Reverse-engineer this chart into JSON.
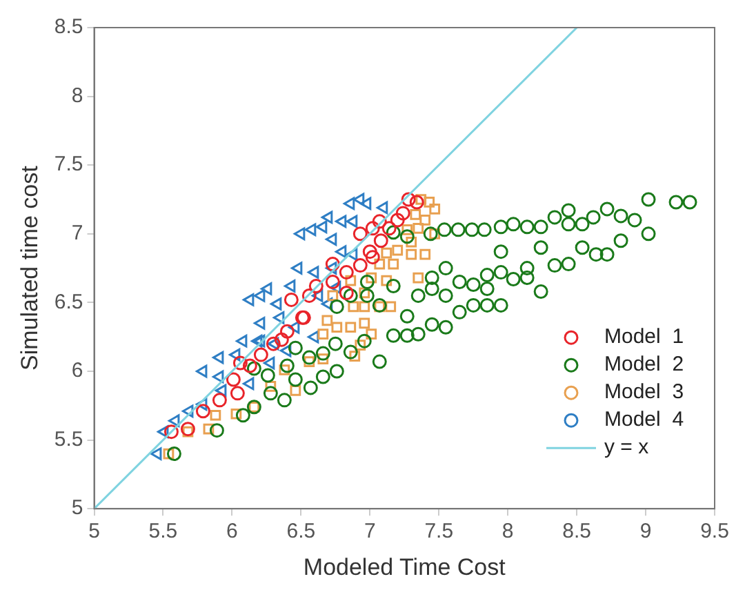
{
  "chart_data": {
    "type": "scatter",
    "xlabel": "Modeled Time Cost",
    "ylabel": "Simulated time cost",
    "xlim": [
      5,
      9.5
    ],
    "xticks": [
      5,
      5.5,
      6,
      6.5,
      7,
      7.5,
      8,
      8.5,
      9,
      9.5
    ],
    "ylim": [
      5,
      8.5
    ],
    "yticks": [
      5,
      5.5,
      6,
      6.5,
      7,
      7.5,
      8,
      8.5
    ],
    "grid": false,
    "legend": "bottom right",
    "series": [
      {
        "name": "Model  1",
        "color": "#e8242a",
        "marker": "circle",
        "x": [
          5.56,
          5.68,
          5.79,
          5.91,
          6.01,
          6.04,
          6.13,
          6.21,
          6.3,
          6.4,
          6.43,
          6.51,
          6.56,
          6.61,
          6.73,
          6.83,
          6.83,
          6.93,
          7.0,
          7.02,
          7.08,
          7.02,
          7.07,
          7.14,
          7.2,
          7.24,
          7.28,
          7.34,
          6.93,
          6.73,
          6.52,
          6.36,
          6.06
        ],
        "values": [
          5.56,
          5.58,
          5.71,
          5.79,
          5.94,
          5.84,
          6.04,
          6.12,
          6.2,
          6.29,
          6.52,
          6.39,
          6.55,
          6.62,
          6.65,
          6.57,
          6.72,
          6.77,
          6.87,
          6.83,
          6.95,
          7.04,
          7.09,
          7.04,
          7.1,
          7.15,
          7.25,
          7.23,
          7.0,
          6.78,
          6.39,
          6.23,
          6.06
        ]
      },
      {
        "name": "Model  2",
        "color": "#1a7a1a",
        "marker": "circle",
        "x": [
          5.58,
          5.89,
          6.08,
          6.16,
          6.28,
          6.38,
          6.16,
          6.4,
          6.46,
          6.57,
          6.66,
          6.76,
          6.66,
          6.75,
          6.86,
          6.96,
          7.07,
          6.98,
          7.07,
          7.17,
          7.17,
          7.27,
          7.35,
          7.27,
          7.35,
          7.45,
          7.55,
          7.45,
          7.55,
          7.45,
          7.55,
          7.65,
          7.65,
          7.75,
          7.85,
          7.95,
          7.75,
          7.85,
          7.95,
          7.85,
          8.04,
          8.14,
          8.14,
          8.24,
          7.95,
          8.24,
          8.34,
          8.44,
          8.54,
          8.64,
          8.72,
          8.82,
          9.02,
          9.22,
          9.32,
          9.02,
          8.92,
          8.82,
          8.72,
          8.62,
          8.54,
          8.44,
          8.44,
          8.34,
          8.24,
          8.14,
          8.04,
          7.95,
          7.83,
          7.74,
          7.64,
          7.54,
          7.44,
          7.27,
          7.17,
          6.98,
          6.86,
          6.76,
          6.56,
          6.46,
          6.26
        ],
        "values": [
          5.4,
          5.57,
          5.68,
          5.74,
          5.84,
          5.79,
          6.02,
          6.04,
          5.94,
          5.88,
          5.96,
          6.0,
          6.13,
          6.2,
          6.14,
          6.22,
          6.07,
          6.55,
          6.48,
          6.62,
          6.26,
          6.26,
          6.27,
          6.4,
          6.55,
          6.34,
          6.32,
          6.6,
          6.75,
          6.68,
          6.55,
          6.65,
          6.43,
          6.48,
          6.48,
          6.48,
          6.63,
          6.7,
          6.72,
          6.6,
          6.67,
          6.68,
          6.75,
          6.58,
          6.87,
          6.9,
          6.77,
          6.78,
          6.9,
          6.85,
          6.85,
          6.95,
          7.0,
          7.23,
          7.23,
          7.25,
          7.1,
          7.13,
          7.18,
          7.12,
          7.07,
          7.17,
          7.07,
          7.12,
          7.05,
          7.05,
          7.07,
          7.05,
          7.03,
          7.03,
          7.03,
          7.03,
          7.0,
          6.98,
          7.01,
          6.65,
          6.55,
          6.47,
          6.1,
          6.17,
          5.97
        ]
      },
      {
        "name": "Model  3",
        "color": "#e8a050",
        "marker": "square",
        "x": [
          5.54,
          5.68,
          5.83,
          5.88,
          6.03,
          6.16,
          6.28,
          6.38,
          6.46,
          6.56,
          6.66,
          6.66,
          6.69,
          6.76,
          6.86,
          6.89,
          6.93,
          6.96,
          7.01,
          6.96,
          7.07,
          7.15,
          6.88,
          6.96,
          7.01,
          7.12,
          7.17,
          7.2,
          7.12,
          7.3,
          7.4,
          7.35,
          7.3,
          7.35,
          7.33,
          7.4,
          7.43,
          7.47,
          7.37,
          7.47,
          7.27,
          6.86,
          6.73,
          7.07
        ],
        "values": [
          5.4,
          5.56,
          5.58,
          5.68,
          5.69,
          5.74,
          5.89,
          6.01,
          5.86,
          6.07,
          6.09,
          6.27,
          6.37,
          6.32,
          6.32,
          6.11,
          6.19,
          6.35,
          6.27,
          6.47,
          6.47,
          6.47,
          6.47,
          6.57,
          6.68,
          6.66,
          6.78,
          6.88,
          6.86,
          6.85,
          6.85,
          6.68,
          6.94,
          7.04,
          7.14,
          7.1,
          7.23,
          7.18,
          7.25,
          7.0,
          7.03,
          6.66,
          6.55,
          6.78
        ]
      },
      {
        "name": "Model  4",
        "color": "#2e7ec4",
        "marker": "triangle",
        "x": [
          5.46,
          5.51,
          5.59,
          5.69,
          5.79,
          5.79,
          5.91,
          5.91,
          5.93,
          6.03,
          6.08,
          6.13,
          6.13,
          6.21,
          6.21,
          6.31,
          6.26,
          6.33,
          6.4,
          6.43,
          6.48,
          6.5,
          6.58,
          6.66,
          6.7,
          6.73,
          6.8,
          6.86,
          6.93,
          6.98,
          7.1,
          6.88,
          6.8,
          6.88,
          6.73,
          6.6,
          6.63,
          6.7,
          6.76,
          6.6,
          6.46,
          6.35,
          6.21,
          6.19,
          6.28
        ],
        "values": [
          5.4,
          5.56,
          5.64,
          5.71,
          5.76,
          6.0,
          6.1,
          5.96,
          5.86,
          6.12,
          6.22,
          5.91,
          6.52,
          6.55,
          6.22,
          6.2,
          6.6,
          6.49,
          6.15,
          6.62,
          6.75,
          7.0,
          7.03,
          7.05,
          7.12,
          6.96,
          7.09,
          7.22,
          7.25,
          7.22,
          7.19,
          7.09,
          6.87,
          6.85,
          6.75,
          6.72,
          6.55,
          6.49,
          6.61,
          6.25,
          6.32,
          6.39,
          6.35,
          6.22,
          6.06
        ]
      },
      {
        "name": "y = x",
        "type": "line",
        "color": "#7fd3e0",
        "marker": "none",
        "x": [
          5,
          8.5
        ],
        "values": [
          5,
          8.5
        ]
      }
    ]
  }
}
